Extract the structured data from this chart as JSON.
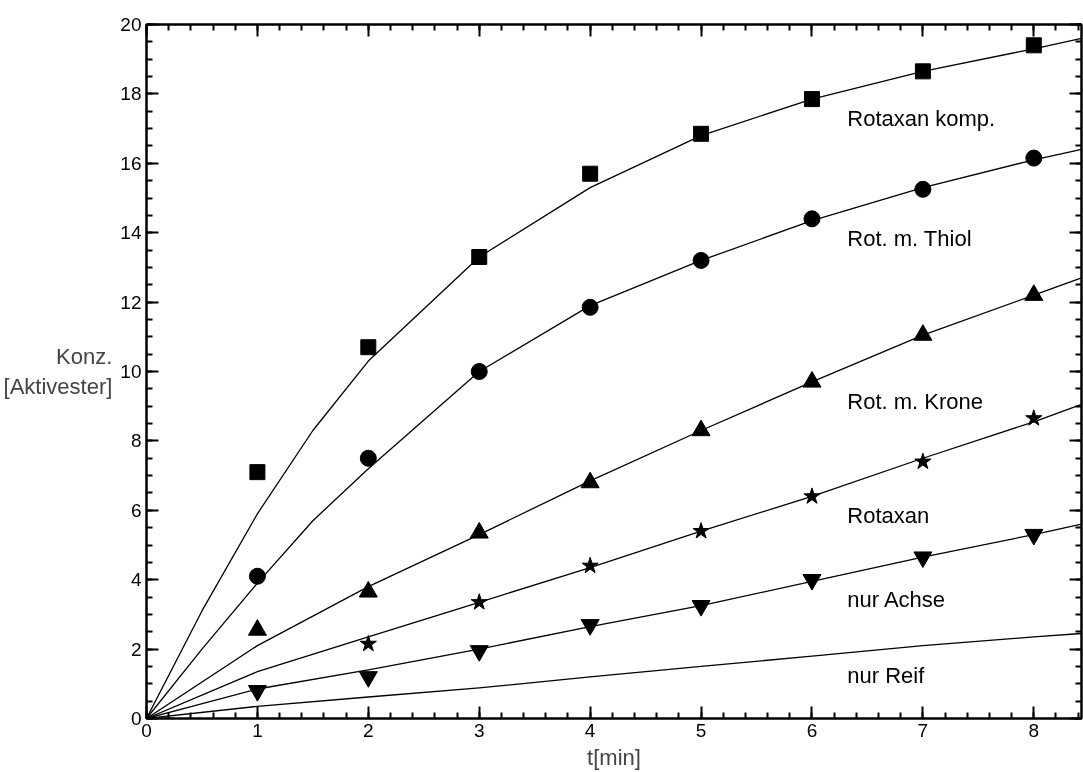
{
  "chart_data": {
    "type": "scatter",
    "xlabel": "t[min]",
    "ylabel": "Konz.\n[Aktivester]",
    "xlim": [
      0,
      8.43
    ],
    "ylim": [
      0,
      20
    ],
    "xticks": [
      0,
      1,
      2,
      3,
      4,
      5,
      6,
      7,
      8
    ],
    "yticks": [
      0,
      2,
      4,
      6,
      8,
      10,
      12,
      14,
      16,
      18,
      20
    ],
    "x": [
      1,
      2,
      3,
      4,
      5,
      6,
      7,
      8
    ],
    "series": [
      {
        "name": "Rotaxan komp.",
        "marker": "square",
        "color": "#000000",
        "values": [
          7.1,
          10.7,
          13.3,
          15.7,
          16.85,
          17.85,
          18.65,
          19.4
        ]
      },
      {
        "name": "Rot. m. Thiol",
        "marker": "circle",
        "color": "#000000",
        "values": [
          4.1,
          7.5,
          10.0,
          11.85,
          13.2,
          14.4,
          15.25,
          16.15
        ]
      },
      {
        "name": "Rot. m. Krone",
        "marker": "triangle",
        "color": "#000000",
        "values": [
          2.55,
          3.65,
          5.35,
          6.8,
          8.3,
          9.7,
          11.05,
          12.2
        ]
      },
      {
        "name": "Rotaxan",
        "marker": "star",
        "color": "#000000",
        "values": [
          null,
          2.15,
          3.35,
          4.4,
          5.4,
          6.4,
          7.4,
          8.65
        ]
      },
      {
        "name": "nur Achse",
        "color": "#000000",
        "values": [
          0.8,
          1.2,
          1.95,
          2.7,
          3.25,
          4.0,
          4.65,
          5.3
        ]
      },
      {
        "type": "line",
        "color": "#000000",
        "x": [
          0,
          0.5,
          1,
          1.5,
          2,
          3,
          4,
          5,
          6,
          7,
          8,
          8.43
        ],
        "values": [
          0,
          3.1,
          5.9,
          8.3,
          10.3,
          13.3,
          15.3,
          16.8,
          17.85,
          18.65,
          19.3,
          19.6
        ]
      },
      {
        "type": "line",
        "color": "#000000",
        "x": [
          0,
          0.5,
          1,
          1.5,
          2,
          3,
          4,
          5,
          6,
          7,
          8,
          8.43
        ],
        "values": [
          0,
          2.0,
          3.9,
          5.7,
          7.2,
          10.0,
          11.9,
          13.2,
          14.35,
          15.3,
          16.1,
          16.4
        ]
      },
      {
        "type": "line",
        "color": "#000000",
        "x": [
          0,
          1,
          2,
          3,
          4,
          5,
          6,
          7,
          8,
          8.43
        ],
        "values": [
          0,
          2.1,
          3.8,
          5.3,
          6.85,
          8.3,
          9.7,
          11.05,
          12.2,
          12.7
        ]
      },
      {
        "type": "line",
        "color": "#000000",
        "x": [
          0,
          1,
          2,
          3,
          4,
          5,
          6,
          7,
          8,
          8.43
        ],
        "values": [
          0,
          1.35,
          2.35,
          3.35,
          4.35,
          5.4,
          6.4,
          7.5,
          8.55,
          9.05
        ]
      },
      {
        "type": "line",
        "color": "#000000",
        "x": [
          0,
          1,
          2,
          3,
          4,
          5,
          6,
          7,
          8,
          8.43
        ],
        "values": [
          0,
          0.85,
          1.4,
          2.0,
          2.65,
          3.25,
          3.95,
          4.65,
          5.3,
          5.6
        ]
      },
      {
        "name": "nur Reif",
        "type": "line",
        "color": "#000000",
        "x": [
          0,
          1,
          2,
          3,
          4,
          5,
          6,
          7,
          8,
          8.43
        ],
        "values": [
          0,
          0.35,
          0.62,
          0.88,
          1.2,
          1.5,
          1.8,
          2.1,
          2.35,
          2.45
        ]
      }
    ]
  }
}
